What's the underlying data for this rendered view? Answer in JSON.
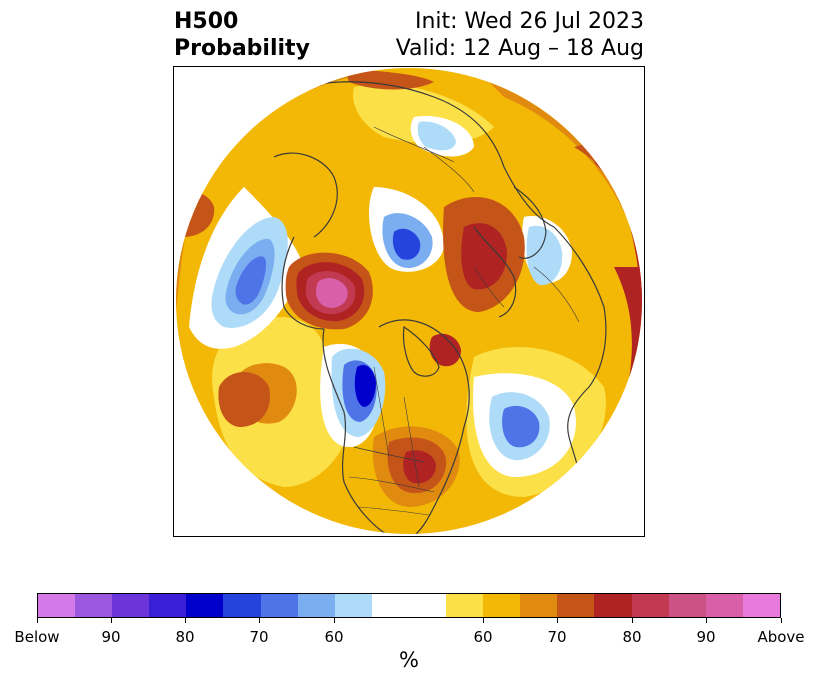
{
  "title": {
    "left_line1": "H500",
    "left_line2": "Probability",
    "right_line1": "Init: Wed 26 Jul 2023",
    "right_line2": "Valid: 12 Aug – 18 Aug"
  },
  "colorbar": {
    "unit": "%",
    "colors": [
      "#d479e8",
      "#9b57e0",
      "#6b35d9",
      "#3a1fd6",
      "#0000cd",
      "#2543dd",
      "#4f74e8",
      "#7aaef0",
      "#aedcf8",
      "#ffffff",
      "#fce047",
      "#f3b806",
      "#e08b10",
      "#c55418",
      "#b02323",
      "#c23a52",
      "#cc5285",
      "#d95fa8",
      "#e879dd"
    ],
    "tick_labels": [
      "Below",
      "90",
      "80",
      "70",
      "60",
      "60",
      "70",
      "80",
      "90",
      "Above"
    ]
  },
  "map": {
    "projection": "north polar stereographic",
    "palette": {
      "ocean_base": "#fce047",
      "outline": "#3a3a3a"
    }
  }
}
